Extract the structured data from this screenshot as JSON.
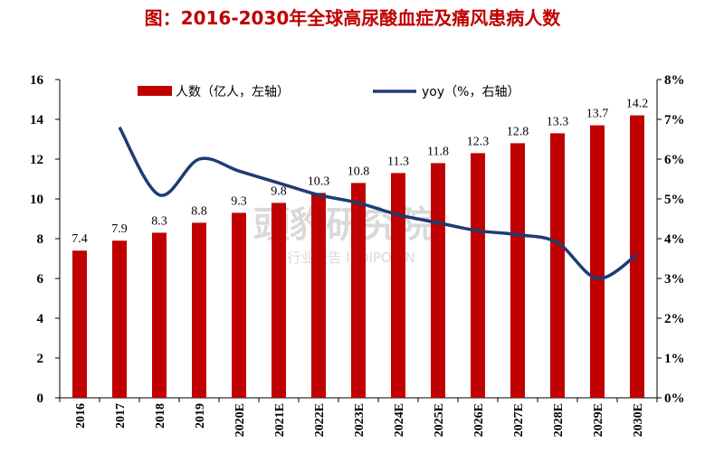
{
  "title": "图：2016-2030年全球高尿酸血症及痛风患病人数",
  "watermark": {
    "main": "頭豹研究院",
    "sub": "行业报告 IPOIPO.CN"
  },
  "chart_data": {
    "type": "bar",
    "categories": [
      "2016",
      "2017",
      "2018",
      "2019",
      "2020E",
      "2021E",
      "2022E",
      "2023E",
      "2024E",
      "2025E",
      "2026E",
      "2027E",
      "2028E",
      "2029E",
      "2030E"
    ],
    "series": [
      {
        "name": "人数（亿人，左轴）",
        "type": "bar",
        "axis": "left",
        "color": "#c00000",
        "values": [
          7.4,
          7.9,
          8.3,
          8.8,
          9.3,
          9.8,
          10.3,
          10.8,
          11.3,
          11.8,
          12.3,
          12.8,
          13.3,
          13.7,
          14.2
        ],
        "labels": [
          "7.4",
          "7.9",
          "8.3",
          "8.8",
          "9.3",
          "9.8",
          "10.3",
          "10.8",
          "11.3",
          "11.8",
          "12.3",
          "12.8",
          "13.3",
          "13.7",
          "14.2"
        ]
      },
      {
        "name": "yoy（%，右轴）",
        "type": "line",
        "axis": "right",
        "color": "#1f3b73",
        "values": [
          null,
          6.8,
          5.1,
          6.0,
          5.7,
          5.4,
          5.1,
          4.9,
          4.6,
          4.4,
          4.2,
          4.1,
          3.9,
          3.0,
          3.6
        ]
      }
    ],
    "y_left": {
      "min": 0,
      "max": 16,
      "ticks": [
        "0",
        "2",
        "4",
        "6",
        "8",
        "10",
        "12",
        "14",
        "16"
      ]
    },
    "y_right": {
      "min": 0,
      "max": 8,
      "ticks": [
        "0%",
        "1%",
        "2%",
        "3%",
        "4%",
        "5%",
        "6%",
        "7%",
        "8%"
      ]
    },
    "legend": "top-center",
    "grid": false
  }
}
